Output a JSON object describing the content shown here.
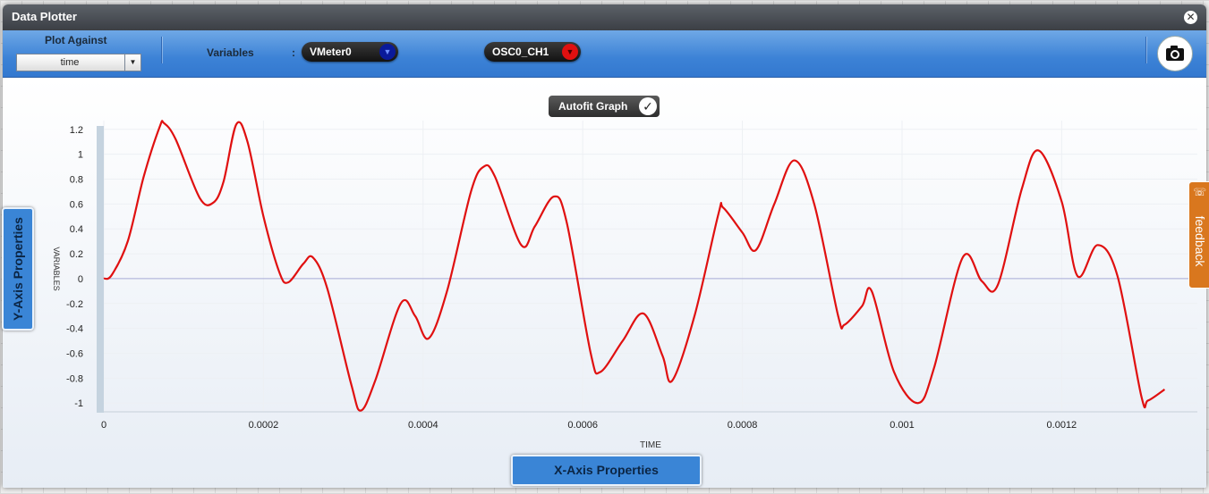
{
  "window": {
    "title": "Data Plotter",
    "close_icon": "close-icon"
  },
  "toolbar": {
    "plot_against_label": "Plot Against",
    "plot_against_value": "time",
    "variables_label": "Variables",
    "colon": ":",
    "variables": [
      {
        "name": "VMeter0",
        "color": "#0a1a9a"
      },
      {
        "name": "OSC0_CH1",
        "color": "#e01010"
      }
    ],
    "camera_icon": "camera-icon"
  },
  "autofit": {
    "label": "Autofit Graph",
    "checked": true
  },
  "side_tabs": {
    "y_axis": "Y-Axis Properties",
    "x_axis": "X-Axis Properties",
    "feedback": "feedback"
  },
  "colors": {
    "accent": "#3a85d6",
    "trace": "#e01010",
    "feedback": "#d9771e"
  },
  "chart_data": {
    "type": "line",
    "xlabel": "TIME",
    "ylabel": "VARIABLES",
    "xlim": [
      0,
      0.00137
    ],
    "ylim": [
      -1.07,
      1.27
    ],
    "xticks": [
      0,
      0.0002,
      0.0004,
      0.0006,
      0.0008,
      0.001,
      0.0012
    ],
    "xtick_labels": [
      "0",
      "0.0002",
      "0.0004",
      "0.0006",
      "0.0008",
      "0.001",
      "0.0012"
    ],
    "yticks": [
      1.2,
      1,
      0.8,
      0.6,
      0.4,
      0.2,
      0,
      -0.2,
      -0.4,
      -0.6,
      -0.8,
      -1
    ],
    "ytick_labels": [
      "1.2",
      "1",
      "0.8",
      "0.6",
      "0.4",
      "0.2",
      "0",
      "-0.2",
      "-0.4",
      "-0.6",
      "-0.8",
      "-1"
    ],
    "grid": true,
    "series": [
      {
        "color": "#e01010",
        "x": [
          0,
          1e-05,
          3e-05,
          5e-05,
          7e-05,
          7.53e-05,
          9e-05,
          0.00012,
          0.000137,
          0.00015,
          0.000166,
          0.00018,
          0.0002,
          0.00022,
          0.000231,
          0.00025,
          0.000262,
          0.00028,
          0.00031,
          0.000322,
          0.00034,
          0.000372,
          0.00039,
          0.000407,
          0.00043,
          0.00046,
          0.000476,
          0.00049,
          0.000523,
          0.00054,
          0.000564,
          0.00058,
          0.00061,
          0.000622,
          0.00065,
          0.000676,
          0.0007,
          0.000712,
          0.00074,
          0.00077,
          0.000776,
          0.0008,
          0.000817,
          0.00084,
          0.000865,
          0.00089,
          0.00092,
          0.000928,
          0.00095,
          0.000962,
          0.00099,
          0.00102,
          0.00104,
          0.001076,
          0.0011,
          0.00112,
          0.00115,
          0.001171,
          0.0012,
          0.00122,
          0.001245,
          0.00127,
          0.0013,
          0.001308,
          0.001329
        ],
        "y": [
          0.0,
          0.03,
          0.3,
          0.82,
          1.22,
          1.25,
          1.12,
          0.65,
          0.61,
          0.78,
          1.24,
          1.1,
          0.5,
          0.05,
          -0.03,
          0.12,
          0.17,
          -0.08,
          -0.85,
          -1.06,
          -0.82,
          -0.2,
          -0.3,
          -0.48,
          -0.1,
          0.7,
          0.9,
          0.82,
          0.27,
          0.42,
          0.66,
          0.45,
          -0.6,
          -0.75,
          -0.5,
          -0.28,
          -0.62,
          -0.82,
          -0.3,
          0.52,
          0.57,
          0.37,
          0.23,
          0.6,
          0.95,
          0.6,
          -0.3,
          -0.37,
          -0.22,
          -0.1,
          -0.75,
          -1.0,
          -0.72,
          0.17,
          -0.02,
          -0.05,
          0.72,
          1.03,
          0.62,
          0.02,
          0.27,
          0.02,
          -0.95,
          -0.98,
          -0.89
        ]
      }
    ]
  }
}
